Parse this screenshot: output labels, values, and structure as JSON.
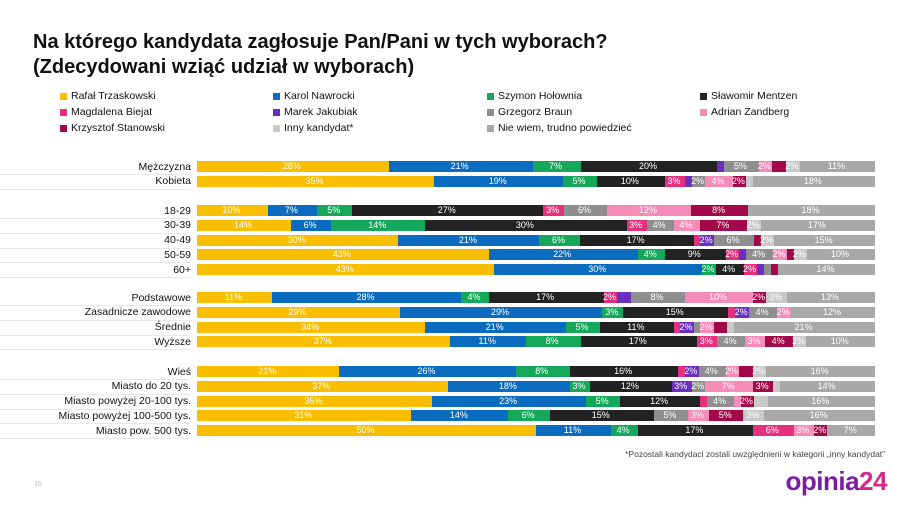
{
  "chart_data": {
    "type": "bar",
    "orientation": "horizontal-stacked",
    "title": "Na którego kandydata zagłosuje Pan/Pani w tych wyborach?\n(Zdecydowani wziąć udział w wyborach)",
    "legend_position": "top",
    "series": [
      {
        "name": "Rafał Trzaskowski",
        "color": "#F9BE00"
      },
      {
        "name": "Karol Nawrocki",
        "color": "#0B6CBF"
      },
      {
        "name": "Szymon Hołownia",
        "color": "#15A85A"
      },
      {
        "name": "Sławomir Mentzen",
        "color": "#222222"
      },
      {
        "name": "Magdalena Biejat",
        "color": "#E5307E"
      },
      {
        "name": "Marek Jakubiak",
        "color": "#6A2EC0"
      },
      {
        "name": "Grzegorz Braun",
        "color": "#8F8F8F"
      },
      {
        "name": "Adrian Zandberg",
        "color": "#F58CB8"
      },
      {
        "name": "Krzysztof Stanowski",
        "color": "#A3094A"
      },
      {
        "name": "Inny kandydat*",
        "color": "#C9C9C9"
      },
      {
        "name": "Nie wiem, trudno powiedzieć",
        "color": "#A8A8A8"
      }
    ],
    "groups": [
      {
        "categories": [
          "Mężczyzna",
          "Kobieta"
        ],
        "values": [
          [
            28,
            21,
            7,
            20,
            0,
            1,
            5,
            2,
            2,
            2,
            11
          ],
          [
            35,
            19,
            5,
            10,
            3,
            1,
            2,
            4,
            2,
            1,
            18
          ]
        ]
      },
      {
        "categories": [
          "18-29",
          "30-39",
          "40-49",
          "50-59",
          "60+"
        ],
        "values": [
          [
            10,
            7,
            5,
            27,
            3,
            0,
            6,
            12,
            8,
            0,
            18
          ],
          [
            14,
            6,
            14,
            30,
            3,
            0,
            4,
            4,
            7,
            2,
            17
          ],
          [
            30,
            21,
            6,
            17,
            1,
            2,
            6,
            0,
            1,
            2,
            15
          ],
          [
            43,
            22,
            4,
            9,
            2,
            1,
            4,
            2,
            1,
            2,
            10
          ],
          [
            43,
            30,
            2,
            4,
            2,
            1,
            1,
            0,
            1,
            0,
            14
          ]
        ]
      },
      {
        "categories": [
          "Podstawowe",
          "Zasadnicze zawodowe",
          "Średnie",
          "Wyższe"
        ],
        "values": [
          [
            11,
            28,
            4,
            17,
            2,
            2,
            8,
            10,
            2,
            3,
            13
          ],
          [
            29,
            29,
            3,
            15,
            1,
            2,
            4,
            2,
            0,
            0,
            12
          ],
          [
            34,
            21,
            5,
            11,
            1,
            2,
            1,
            2,
            2,
            1,
            21
          ],
          [
            37,
            11,
            8,
            17,
            3,
            0,
            4,
            3,
            4,
            2,
            10
          ]
        ]
      },
      {
        "categories": [
          "Wieś",
          "Miasto do 20 tys.",
          "Miasto powyżej 20-100 tys.",
          "Miasto powyżej 100-500 tys.",
          "Miasto pow. 500 tys."
        ],
        "values": [
          [
            21,
            26,
            8,
            16,
            1,
            2,
            4,
            2,
            2,
            2,
            16
          ],
          [
            37,
            18,
            3,
            12,
            0,
            3,
            2,
            7,
            3,
            1,
            14
          ],
          [
            35,
            23,
            5,
            12,
            1,
            0,
            4,
            1,
            2,
            2,
            16
          ],
          [
            31,
            14,
            6,
            15,
            0,
            0,
            5,
            3,
            5,
            3,
            16
          ],
          [
            50,
            11,
            4,
            17,
            6,
            0,
            0,
            3,
            2,
            0,
            7
          ]
        ]
      }
    ]
  },
  "title_line1": "Na którego kandydata zagłosuje Pan/Pani w tych wyborach?",
  "title_line2": "(Zdecydowani wziąć udział w wyborach)",
  "footnote": "*Pozostali kandydaci zostali uwzględnieni w kategorii „inny kandydat”",
  "page_number": "16",
  "logo": {
    "part1": "opinia",
    "part2": "24"
  }
}
